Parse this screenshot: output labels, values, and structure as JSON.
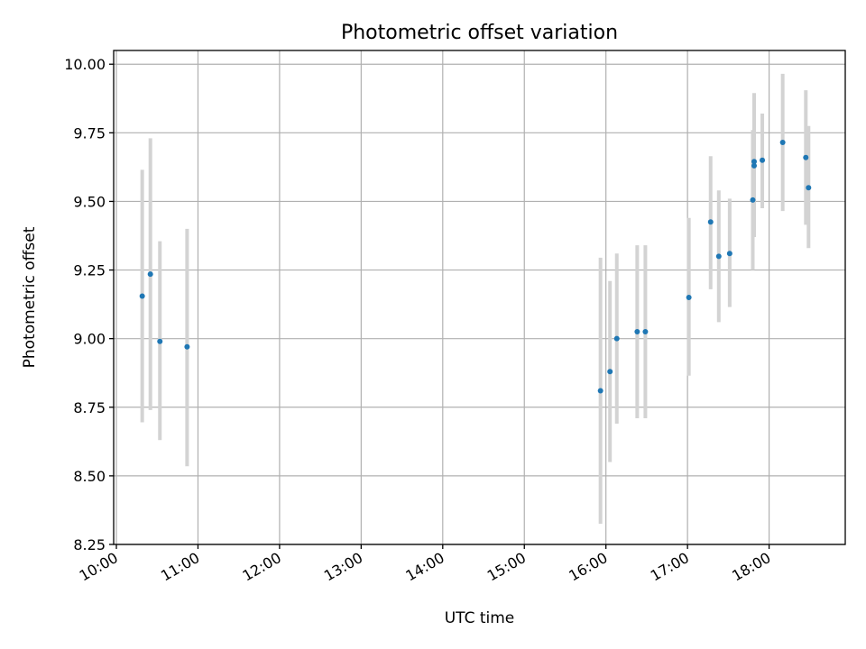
{
  "chart_data": {
    "type": "scatter",
    "title": "Photometric offset variation",
    "xlabel": "UTC time",
    "ylabel": "Photometric offset",
    "x_ticks": [
      "10:00",
      "11:00",
      "12:00",
      "13:00",
      "14:00",
      "15:00",
      "16:00",
      "17:00",
      "18:00"
    ],
    "y_ticks": [
      "8.25",
      "8.50",
      "8.75",
      "9.00",
      "9.25",
      "9.50",
      "9.75",
      "10.00"
    ],
    "xlim": [
      "09:58",
      "18:56"
    ],
    "ylim": [
      8.25,
      10.05
    ],
    "grid": true,
    "colors": {
      "point": "#1f77b4",
      "errorbar": "#d3d3d3",
      "grid": "#b0b0b0"
    },
    "series": [
      {
        "points": [
          {
            "x": "10:19",
            "y": 9.155,
            "ylow": 8.695,
            "yhigh": 9.615
          },
          {
            "x": "10:25",
            "y": 9.235,
            "ylow": 8.74,
            "yhigh": 9.73
          },
          {
            "x": "10:32",
            "y": 8.99,
            "ylow": 8.63,
            "yhigh": 9.355
          },
          {
            "x": "10:52",
            "y": 8.97,
            "ylow": 8.535,
            "yhigh": 9.4
          },
          {
            "x": "15:56",
            "y": 8.81,
            "ylow": 8.325,
            "yhigh": 9.295
          },
          {
            "x": "16:03",
            "y": 8.88,
            "ylow": 8.55,
            "yhigh": 9.21
          },
          {
            "x": "16:08",
            "y": 9.0,
            "ylow": 8.69,
            "yhigh": 9.31
          },
          {
            "x": "16:23",
            "y": 9.025,
            "ylow": 8.71,
            "yhigh": 9.34
          },
          {
            "x": "16:29",
            "y": 9.025,
            "ylow": 8.71,
            "yhigh": 9.34
          },
          {
            "x": "17:01",
            "y": 9.15,
            "ylow": 8.865,
            "yhigh": 9.44
          },
          {
            "x": "17:17",
            "y": 9.425,
            "ylow": 9.18,
            "yhigh": 9.665
          },
          {
            "x": "17:23",
            "y": 9.3,
            "ylow": 9.06,
            "yhigh": 9.54
          },
          {
            "x": "17:31",
            "y": 9.31,
            "ylow": 9.115,
            "yhigh": 9.51
          },
          {
            "x": "17:48",
            "y": 9.505,
            "ylow": 9.25,
            "yhigh": 9.76
          },
          {
            "x": "17:49",
            "y": 9.63,
            "ylow": 9.37,
            "yhigh": 9.895
          },
          {
            "x": "17:49",
            "y": 9.645,
            "ylow": 9.4,
            "yhigh": 9.79
          },
          {
            "x": "17:55",
            "y": 9.65,
            "ylow": 9.475,
            "yhigh": 9.82
          },
          {
            "x": "18:10",
            "y": 9.715,
            "ylow": 9.465,
            "yhigh": 9.965
          },
          {
            "x": "18:27",
            "y": 9.66,
            "ylow": 9.415,
            "yhigh": 9.905
          },
          {
            "x": "18:29",
            "y": 9.55,
            "ylow": 9.33,
            "yhigh": 9.775
          }
        ]
      }
    ]
  }
}
